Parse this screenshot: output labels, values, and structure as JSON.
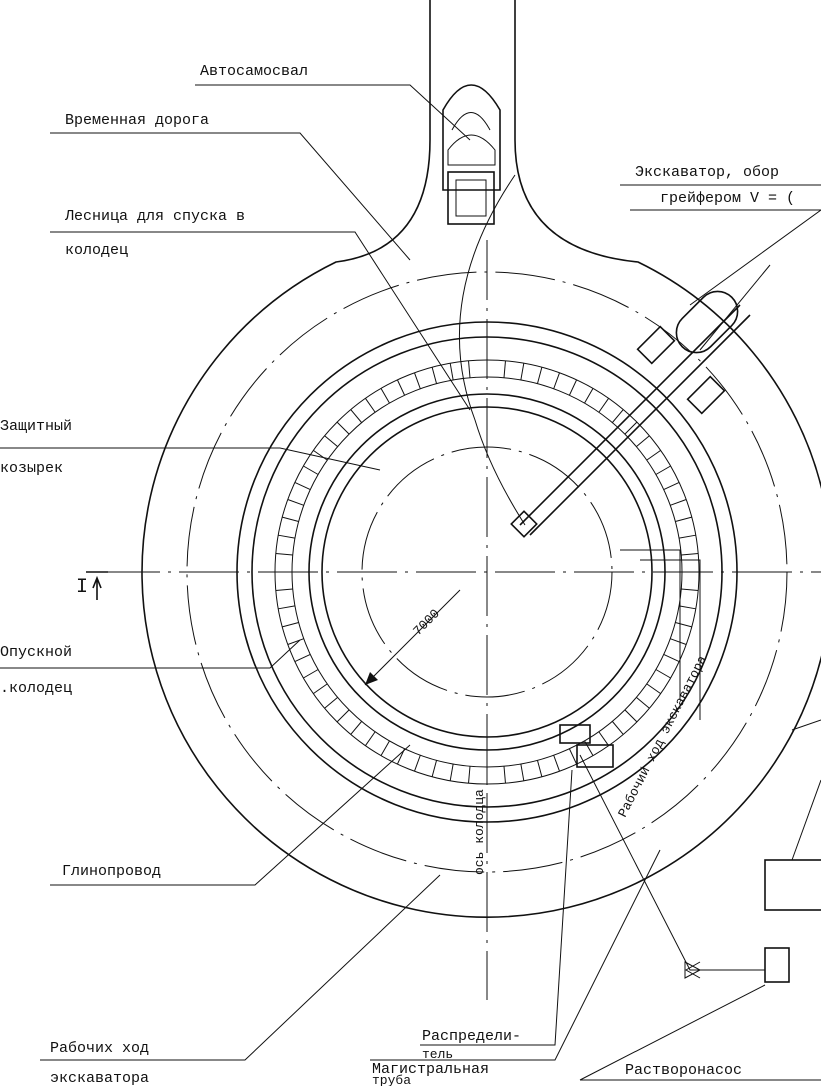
{
  "labels": {
    "truck": "Автосамосвал",
    "road": "Временная дорога",
    "excavator_1": "Экскаватор, обор",
    "excavator_2": "грейфером V = (",
    "ladder_1": "Лесница для спуска в",
    "ladder_2": "колодец",
    "visor_1": "Защитный",
    "visor_2": "козырек",
    "section": "I",
    "diameter": "7000",
    "well_1": "Опускной",
    "well_2": ".колодец",
    "travel_arc": "Рабочий ход экскаватора",
    "axis": "ось колодца",
    "clay_pipe": "Глинопровод",
    "distributor_1": "Распредели-",
    "distributor_2": "тель",
    "main_pipe_1": "Магистральная",
    "main_pipe_2": "труба",
    "travel_1": "Рабочих ход",
    "travel_2": "экскаватора",
    "pump": "Растворонасос"
  }
}
